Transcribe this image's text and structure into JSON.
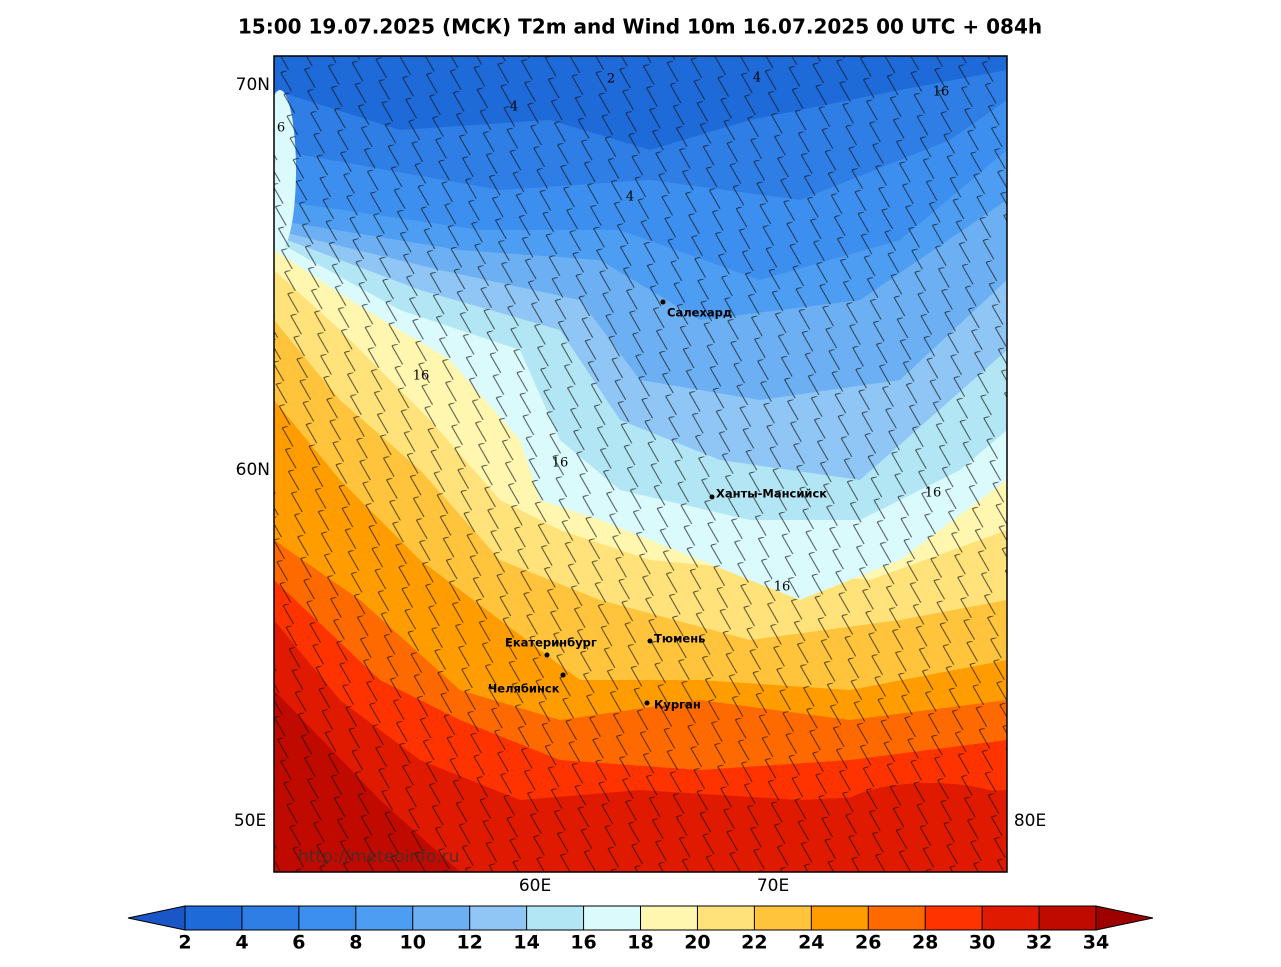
{
  "title": "15:00 19.07.2025 (МСК) T2m and Wind 10m 16.07.2025 00 UTC + 084h",
  "axes": {
    "lat_labels": [
      "70N",
      "60N"
    ],
    "lon_labels_side": [
      "50E",
      "80E"
    ],
    "lon_labels_bottom": [
      "60E",
      "70E"
    ]
  },
  "cities": [
    "Салехард",
    "Ханты-Мансийск",
    "Екатеринбург",
    "Челябинск",
    "Тюмень",
    "Курган"
  ],
  "contour_labels": [
    2,
    4,
    4,
    16,
    6,
    4,
    16,
    16,
    16,
    16
  ],
  "watermark": "http://meteoinfo.ru",
  "colorbar": {
    "ticks": [
      2,
      4,
      6,
      8,
      10,
      12,
      14,
      16,
      18,
      20,
      22,
      24,
      26,
      28,
      30,
      32,
      34
    ],
    "colors": [
      "#1a56c8",
      "#1f6ad9",
      "#2f7ee6",
      "#3d8fef",
      "#4d9df2",
      "#6cb0f3",
      "#8fc6f5",
      "#b2e6f5",
      "#dafafb",
      "#fff6b0",
      "#ffe27a",
      "#ffc43c",
      "#ff9d00",
      "#ff6a00",
      "#ff3300",
      "#e01a00",
      "#c00a00",
      "#9e0000"
    ]
  }
}
